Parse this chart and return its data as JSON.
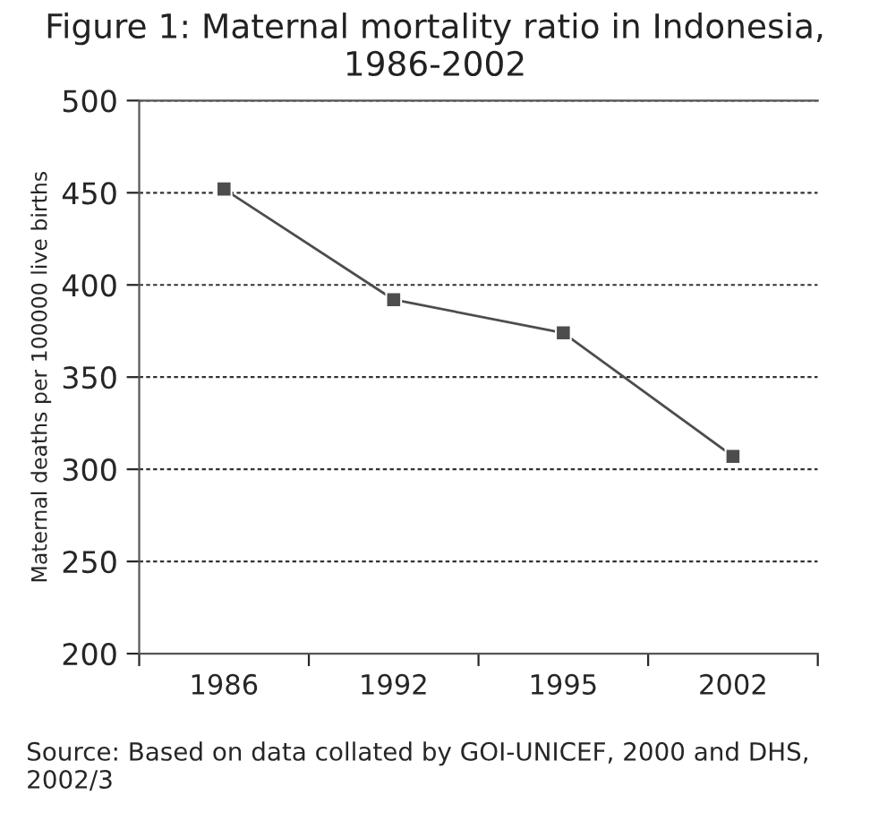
{
  "chart_data": {
    "type": "line",
    "title": "Figure 1: Maternal mortality ratio in Indonesia, 1986-2002",
    "ylabel": "Maternal deaths per 100000 live births",
    "categories": [
      "1986",
      "1992",
      "1995",
      "2002"
    ],
    "series": [
      {
        "color": "#4d4d4d",
        "values": [
          452,
          392,
          374,
          307
        ]
      }
    ],
    "ylim": [
      200,
      500
    ],
    "yticks": [
      200,
      250,
      300,
      350,
      400,
      450,
      500
    ],
    "grid": "y",
    "marker": "square",
    "line_style": "solid",
    "annotations": [
      "Source: Based on data collated by GOI-UNICEF, 2000 and DHS, 2002/3"
    ]
  }
}
